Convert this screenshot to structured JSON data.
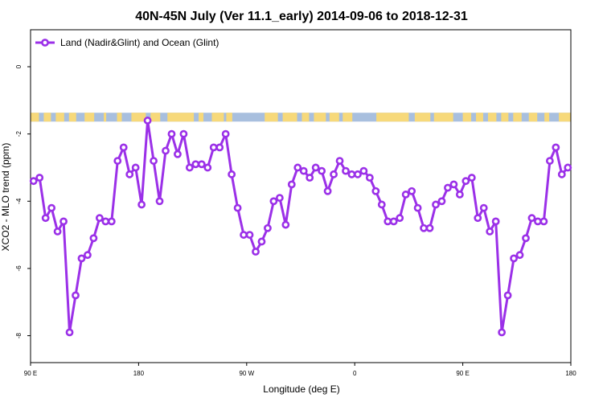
{
  "chart_data": {
    "type": "line",
    "title": "40N-45N July (Ver 11.1_early)   2014-09-06 to 2018-12-31",
    "xlabel": "Longitude (deg E)",
    "ylabel": "XCO2 - MLO trend (ppm)",
    "xlim": [
      90,
      540
    ],
    "ylim": [
      -8.8,
      1.1
    ],
    "xticks": [
      {
        "value": 90,
        "label": "90 E"
      },
      {
        "value": 180,
        "label": "180"
      },
      {
        "value": 270,
        "label": "90 W"
      },
      {
        "value": 360,
        "label": "0"
      },
      {
        "value": 450,
        "label": "90 E"
      },
      {
        "value": 540,
        "label": "180"
      }
    ],
    "yticks": [
      {
        "value": 0,
        "label": "0"
      },
      {
        "value": -2,
        "label": "-2"
      },
      {
        "value": -4,
        "label": "-4"
      },
      {
        "value": -6,
        "label": "-6"
      },
      {
        "value": -8,
        "label": "-8"
      }
    ],
    "legend": {
      "position": "top-left"
    },
    "series": [
      {
        "name": "Land (Nadir&Glint) and Ocean (Glint)",
        "color": "#9b30e8",
        "x": [
          92.5,
          97.5,
          102.5,
          107.5,
          112.5,
          117.5,
          122.5,
          127.5,
          132.5,
          137.5,
          142.5,
          147.5,
          152.5,
          157.5,
          162.5,
          167.5,
          172.5,
          177.5,
          182.5,
          187.5,
          192.5,
          197.5,
          202.5,
          207.5,
          212.5,
          217.5,
          222.5,
          227.5,
          232.5,
          237.5,
          242.5,
          247.5,
          252.5,
          257.5,
          262.5,
          267.5,
          272.5,
          277.5,
          282.5,
          287.5,
          292.5,
          297.5,
          302.5,
          307.5,
          312.5,
          317.5,
          322.5,
          327.5,
          332.5,
          337.5,
          342.5,
          347.5,
          352.5,
          357.5,
          362.5,
          367.5,
          372.5,
          377.5,
          382.5,
          387.5,
          392.5,
          397.5,
          402.5,
          407.5,
          412.5,
          417.5,
          422.5,
          427.5,
          432.5,
          437.5,
          442.5,
          447.5,
          452.5,
          457.5,
          462.5,
          467.5,
          472.5,
          477.5,
          482.5,
          487.5,
          492.5,
          497.5,
          502.5,
          507.5,
          512.5,
          517.5,
          522.5,
          527.5,
          532.5,
          537.5
        ],
        "y": [
          -3.4,
          -3.3,
          -4.5,
          -4.2,
          -4.9,
          -4.6,
          -7.9,
          -6.8,
          -5.7,
          -5.6,
          -5.1,
          -4.5,
          -4.6,
          -4.6,
          -2.8,
          -2.4,
          -3.2,
          -3.0,
          -4.1,
          -1.6,
          -2.8,
          -4.0,
          -2.5,
          -2.0,
          -2.6,
          -2.0,
          -3.0,
          -2.9,
          -2.9,
          -3.0,
          -2.4,
          -2.4,
          -2.0,
          -3.2,
          -4.2,
          -5.0,
          -5.0,
          -5.5,
          -5.2,
          -4.8,
          -4.0,
          -3.9,
          -4.7,
          -3.5,
          -3.0,
          -3.1,
          -3.3,
          -3.0,
          -3.1,
          -3.7,
          -3.2,
          -2.8,
          -3.1,
          -3.2,
          -3.2,
          -3.1,
          -3.3,
          -3.7,
          -4.1,
          -4.6,
          -4.6,
          -4.5,
          -3.8,
          -3.7,
          -4.2,
          -4.8,
          -4.8,
          -4.1,
          -4.0,
          -3.6,
          -3.5,
          -3.8,
          -3.4,
          -3.3,
          -4.5,
          -4.2,
          -4.9,
          -4.6,
          -7.9,
          -6.8,
          -5.7,
          -5.6,
          -5.1,
          -4.5,
          -4.6,
          -4.6,
          -2.8,
          -2.4,
          -3.2,
          -3.0
        ]
      }
    ],
    "land_ocean_strip": {
      "y_center": -1.5,
      "ocean_color": "#a8bfde",
      "land_color": "#f7d97a",
      "land_segments": [
        [
          90,
          97
        ],
        [
          101,
          107
        ],
        [
          111,
          118
        ],
        [
          122,
          128
        ],
        [
          135,
          143
        ],
        [
          151,
          153
        ],
        [
          162,
          166
        ],
        [
          174,
          186
        ],
        [
          190,
          198
        ],
        [
          204,
          226
        ],
        [
          230,
          234
        ],
        [
          241,
          251
        ],
        [
          253,
          258
        ],
        [
          285,
          296
        ],
        [
          300,
          312
        ],
        [
          316,
          322
        ],
        [
          326,
          336
        ],
        [
          339,
          347
        ],
        [
          350,
          358
        ],
        [
          378,
          405
        ],
        [
          410,
          423
        ],
        [
          426,
          442
        ],
        [
          450,
          457
        ],
        [
          461,
          467
        ],
        [
          471,
          478
        ],
        [
          482,
          488
        ],
        [
          492,
          499
        ],
        [
          505,
          512
        ],
        [
          518,
          522
        ],
        [
          530,
          540
        ]
      ]
    }
  }
}
